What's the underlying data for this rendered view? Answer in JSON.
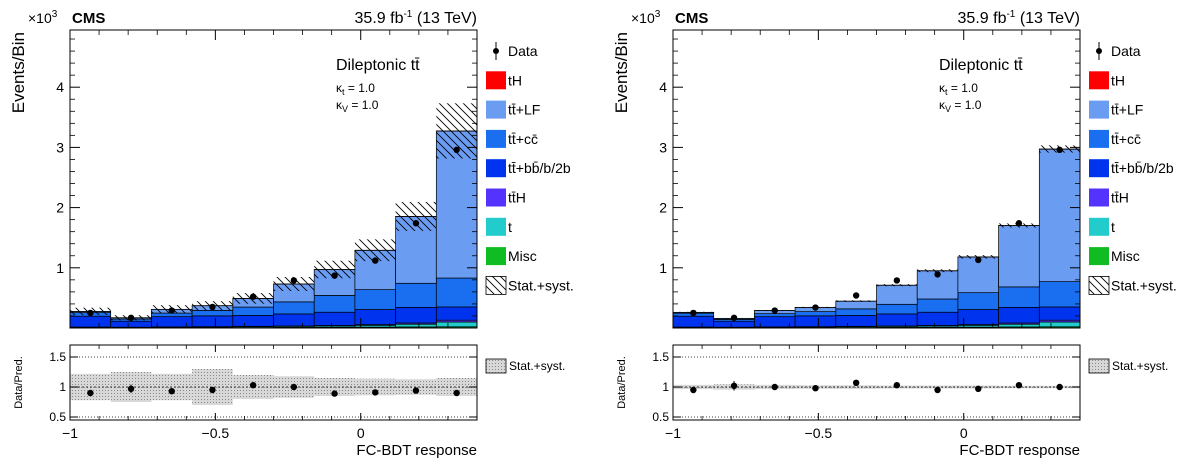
{
  "chart_data": [
    {
      "type": "bar",
      "experiment": "CMS",
      "luminosity": "35.9 fb",
      "lumi_exponent": "-1",
      "energy": " (13 TeV)",
      "scale_prefix": "×10",
      "scale_exponent": "3",
      "region_label": "Dileptonic tt̄",
      "coupling_t": "κ",
      "coupling_t_sub": "t",
      "coupling_t_val": " = 1.0",
      "coupling_v": "κ",
      "coupling_v_sub": "V",
      "coupling_v_val": " = 1.0",
      "ylabel": "Events/Bin",
      "ratio_ylabel": "Data/Pred.",
      "xlabel": "FC-BDT response",
      "bin_edges": [
        -1.0,
        -0.86,
        -0.72,
        -0.58,
        -0.44,
        -0.3,
        -0.16,
        -0.02,
        0.12,
        0.26,
        0.4
      ],
      "xlim": [
        -1.0,
        0.4
      ],
      "ylim": [
        0,
        4.95
      ],
      "ratio_ylim": [
        0.45,
        1.7
      ],
      "x_ticks": [
        -1,
        -0.5,
        0
      ],
      "x_tick_labels": [
        "−1",
        "−0.5",
        "0"
      ],
      "y_ticks": [
        1,
        2,
        3,
        4
      ],
      "y_tick_labels": [
        "1",
        "2",
        "3",
        "4"
      ],
      "ratio_y_ticks": [
        0.5,
        1,
        1.5
      ],
      "ratio_y_tick_labels": [
        "0.5",
        "1",
        "1.5"
      ],
      "series": [
        {
          "name": "Misc",
          "color": "#11bb22",
          "values": [
            0.004,
            0.003,
            0.005,
            0.006,
            0.008,
            0.01,
            0.012,
            0.015,
            0.018,
            0.02
          ]
        },
        {
          "name": "t",
          "color": "#22cccc",
          "values": [
            0.01,
            0.008,
            0.01,
            0.012,
            0.015,
            0.018,
            0.022,
            0.03,
            0.045,
            0.08
          ]
        },
        {
          "name": "tt̄H",
          "color": "#5533ff",
          "values": [
            0.002,
            0.002,
            0.003,
            0.004,
            0.005,
            0.006,
            0.008,
            0.012,
            0.02,
            0.03
          ]
        },
        {
          "name": "tt̄+bb̄/b/2b",
          "color": "#0033ee",
          "values": [
            0.18,
            0.1,
            0.17,
            0.18,
            0.18,
            0.2,
            0.22,
            0.25,
            0.26,
            0.22
          ]
        },
        {
          "name": "tt̄+cc̄",
          "color": "#1a6ff0",
          "values": [
            0.06,
            0.037,
            0.06,
            0.09,
            0.14,
            0.2,
            0.28,
            0.33,
            0.4,
            0.48
          ]
        },
        {
          "name": "tt̄+LF",
          "color": "#6a9cf2",
          "values": [
            0.02,
            0.02,
            0.062,
            0.078,
            0.142,
            0.296,
            0.428,
            0.653,
            1.107,
            2.44
          ]
        },
        {
          "name": "tH",
          "color": "#ff0000",
          "values": [
            0.0005,
            0.0005,
            0.0005,
            0.0008,
            0.001,
            0.001,
            0.002,
            0.002,
            0.003,
            0.004
          ]
        }
      ],
      "legend": [
        {
          "label": "Data",
          "kind": "data"
        },
        {
          "label": "tH",
          "kind": "fill",
          "color": "#ff0000"
        },
        {
          "label": "tt̄+LF",
          "kind": "fill",
          "color": "#6a9cf2"
        },
        {
          "label": "tt̄+cc̄",
          "kind": "fill",
          "color": "#1a6ff0"
        },
        {
          "label": "tt̄+bb̄/b/2b",
          "kind": "fill",
          "color": "#0033ee"
        },
        {
          "label": "tt̄H",
          "kind": "fill",
          "color": "#5533ff"
        },
        {
          "label": "t",
          "kind": "fill",
          "color": "#22cccc"
        },
        {
          "label": "Misc",
          "kind": "fill",
          "color": "#11bb22"
        },
        {
          "label": "Stat.+syst.",
          "kind": "hatch"
        }
      ],
      "ratio_legend": "Stat.+syst.",
      "data_points": [
        0.25,
        0.17,
        0.29,
        0.35,
        0.52,
        0.79,
        0.87,
        1.12,
        1.74,
        2.96
      ],
      "unc_fraction": [
        0.22,
        0.25,
        0.22,
        0.2,
        0.18,
        0.16,
        0.15,
        0.14,
        0.13,
        0.14
      ],
      "ratio_points": [
        0.9,
        0.97,
        0.93,
        0.95,
        1.03,
        1.0,
        0.89,
        0.91,
        0.94,
        0.9
      ],
      "ratio_err": [
        0.05,
        0.07,
        0.04,
        0.035,
        0.03,
        0.025,
        0.025,
        0.02,
        0.02,
        0.015
      ],
      "ratio_band": [
        0.22,
        0.25,
        0.22,
        0.3,
        0.2,
        0.18,
        0.15,
        0.14,
        0.13,
        0.15
      ]
    },
    {
      "type": "bar",
      "experiment": "CMS",
      "luminosity": "35.9 fb",
      "lumi_exponent": "-1",
      "energy": " (13 TeV)",
      "scale_prefix": "×10",
      "scale_exponent": "3",
      "region_label": "Dileptonic tt̄",
      "coupling_t": "κ",
      "coupling_t_sub": "t",
      "coupling_t_val": " = 1.0",
      "coupling_v": "κ",
      "coupling_v_sub": "V",
      "coupling_v_val": " = 1.0",
      "ylabel": "Events/Bin",
      "ratio_ylabel": "Data/Pred.",
      "xlabel": "FC-BDT response",
      "bin_edges": [
        -1.0,
        -0.86,
        -0.72,
        -0.58,
        -0.44,
        -0.3,
        -0.16,
        -0.02,
        0.12,
        0.26,
        0.4
      ],
      "xlim": [
        -1.0,
        0.4
      ],
      "ylim": [
        0,
        4.95
      ],
      "ratio_ylim": [
        0.45,
        1.7
      ],
      "x_ticks": [
        -1,
        -0.5,
        0
      ],
      "x_tick_labels": [
        "−1",
        "−0.5",
        "0"
      ],
      "y_ticks": [
        1,
        2,
        3,
        4
      ],
      "y_tick_labels": [
        "1",
        "2",
        "3",
        "4"
      ],
      "ratio_y_ticks": [
        0.5,
        1,
        1.5
      ],
      "ratio_y_tick_labels": [
        "0.5",
        "1",
        "1.5"
      ],
      "series": [
        {
          "name": "Misc",
          "color": "#11bb22",
          "values": [
            0.004,
            0.003,
            0.005,
            0.006,
            0.008,
            0.01,
            0.012,
            0.015,
            0.018,
            0.02
          ]
        },
        {
          "name": "t",
          "color": "#22cccc",
          "values": [
            0.01,
            0.008,
            0.01,
            0.012,
            0.015,
            0.018,
            0.022,
            0.03,
            0.045,
            0.08
          ]
        },
        {
          "name": "tt̄H",
          "color": "#5533ff",
          "values": [
            0.002,
            0.002,
            0.003,
            0.004,
            0.005,
            0.006,
            0.008,
            0.012,
            0.02,
            0.03
          ]
        },
        {
          "name": "tt̄+bb̄/b/2b",
          "color": "#0033ee",
          "values": [
            0.18,
            0.1,
            0.17,
            0.18,
            0.18,
            0.2,
            0.22,
            0.25,
            0.26,
            0.22
          ]
        },
        {
          "name": "tt̄+cc̄",
          "color": "#1a6ff0",
          "values": [
            0.05,
            0.03,
            0.05,
            0.07,
            0.11,
            0.16,
            0.22,
            0.28,
            0.34,
            0.42
          ]
        },
        {
          "name": "tt̄+LF",
          "color": "#6a9cf2",
          "values": [
            0.014,
            0.017,
            0.052,
            0.068,
            0.127,
            0.316,
            0.468,
            0.593,
            1.017,
            2.2
          ]
        },
        {
          "name": "tH",
          "color": "#ff0000",
          "values": [
            0.0005,
            0.0005,
            0.0005,
            0.0008,
            0.001,
            0.001,
            0.002,
            0.002,
            0.003,
            0.004
          ]
        }
      ],
      "legend": [
        {
          "label": "Data",
          "kind": "data"
        },
        {
          "label": "tH",
          "kind": "fill",
          "color": "#ff0000"
        },
        {
          "label": "tt̄+LF",
          "kind": "fill",
          "color": "#6a9cf2"
        },
        {
          "label": "tt̄+cc̄",
          "kind": "fill",
          "color": "#1a6ff0"
        },
        {
          "label": "tt̄+bb̄/b/2b",
          "kind": "fill",
          "color": "#0033ee"
        },
        {
          "label": "tt̄H",
          "kind": "fill",
          "color": "#5533ff"
        },
        {
          "label": "t",
          "kind": "fill",
          "color": "#22cccc"
        },
        {
          "label": "Misc",
          "kind": "fill",
          "color": "#11bb22"
        },
        {
          "label": "Stat.+syst.",
          "kind": "hatch"
        }
      ],
      "ratio_legend": "Stat.+syst.",
      "data_points": [
        0.25,
        0.17,
        0.29,
        0.34,
        0.54,
        0.79,
        0.89,
        1.13,
        1.74,
        2.96
      ],
      "unc_fraction": [
        0.03,
        0.04,
        0.03,
        0.03,
        0.03,
        0.025,
        0.025,
        0.025,
        0.02,
        0.02
      ],
      "ratio_points": [
        0.95,
        1.02,
        1.0,
        0.98,
        1.07,
        1.03,
        0.95,
        0.97,
        1.03,
        1.0
      ],
      "ratio_err": [
        0.05,
        0.08,
        0.05,
        0.04,
        0.03,
        0.025,
        0.025,
        0.02,
        0.02,
        0.015
      ],
      "ratio_band": [
        0.035,
        0.045,
        0.035,
        0.03,
        0.03,
        0.025,
        0.025,
        0.025,
        0.02,
        0.02
      ]
    }
  ]
}
